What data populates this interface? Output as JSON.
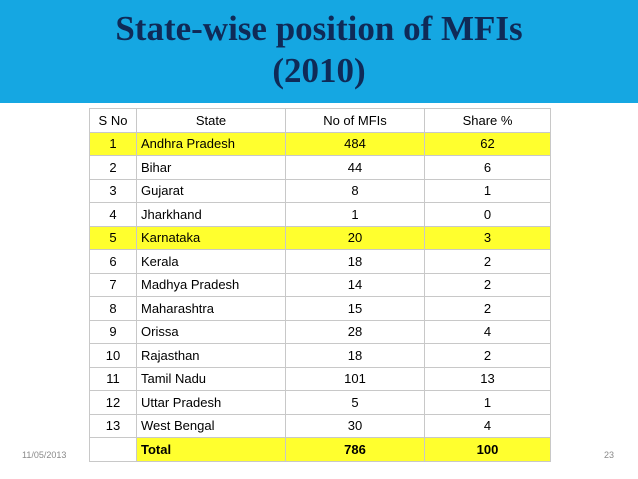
{
  "slide": {
    "title_line1": "State-wise position of MFIs",
    "title_line2": "(2010)",
    "footer_date": "11/05/2013",
    "page_number": "23",
    "banner_color": "#15a7e2",
    "highlight_color": "#ffff2e"
  },
  "table": {
    "headers": [
      "S No",
      "State",
      "No of MFIs",
      "Share %"
    ],
    "rows": [
      [
        "1",
        "Andhra Pradesh",
        "484",
        "62"
      ],
      [
        "2",
        "Bihar",
        "44",
        "6"
      ],
      [
        "3",
        "Gujarat",
        "8",
        "1"
      ],
      [
        "4",
        "Jharkhand",
        "1",
        "0"
      ],
      [
        "5",
        "Karnataka",
        "20",
        "3"
      ],
      [
        "6",
        "Kerala",
        "18",
        "2"
      ],
      [
        "7",
        "Madhya Pradesh",
        "14",
        "2"
      ],
      [
        "8",
        "Maharashtra",
        "15",
        "2"
      ],
      [
        "9",
        "Orissa",
        "28",
        "4"
      ],
      [
        "10",
        "Rajasthan",
        "18",
        "2"
      ],
      [
        "11",
        "Tamil Nadu",
        "101",
        "13"
      ],
      [
        "12",
        "Uttar Pradesh",
        "5",
        "1"
      ],
      [
        "13",
        "West Bengal",
        "30",
        "4"
      ]
    ],
    "total": [
      "",
      "Total",
      "786",
      "100"
    ],
    "highlighted_rows": [
      0,
      4
    ]
  }
}
